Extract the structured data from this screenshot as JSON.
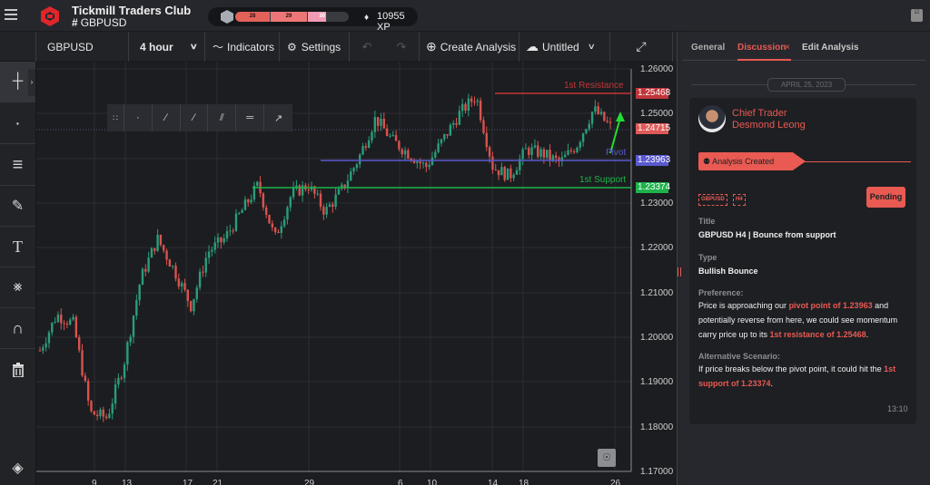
{
  "header": {
    "brand_title": "Tickmill Traders Club",
    "channel_hash": "#",
    "channel_name": "GBPUSD",
    "xp_levels": [
      "28",
      "29",
      "30"
    ],
    "xp_value": "10955 XP",
    "diamond_glyph": "♦",
    "filter_glyph": "☑"
  },
  "toolbar": {
    "symbol": "GBPUSD",
    "interval": "4 hour",
    "interval_chevron": "∨",
    "indicators_icon": "〜",
    "indicators": "Indicators",
    "settings_icon": "⚙",
    "settings": "Settings",
    "undo_icon": "↶",
    "redo_icon": "↷",
    "create_icon": "⊕",
    "create_analysis": "Create Analysis",
    "cloud_icon": "☁",
    "untitled": "Untitled",
    "untitled_chevron": "∨",
    "fullscreen_icon": "⤢"
  },
  "left_tools": [
    {
      "name": "crosshair",
      "glyph": "┼",
      "expand": "›"
    },
    {
      "name": "dot",
      "glyph": "·"
    },
    {
      "name": "trend-lines",
      "glyph": "≡"
    },
    {
      "name": "brush",
      "glyph": "✎"
    },
    {
      "name": "text",
      "glyph": "T"
    },
    {
      "name": "patterns",
      "glyph": "⨳"
    },
    {
      "name": "magnet",
      "glyph": "∩"
    },
    {
      "name": "trash",
      "glyph": "⌘"
    },
    {
      "name": "layers",
      "glyph": "◈"
    }
  ],
  "float_toolbar": {
    "grip": "∷",
    "buttons": [
      "·",
      "∕",
      "∕",
      "⫽",
      "═",
      "↗"
    ]
  },
  "chart_overlay": {
    "resistance_label": "1st Resistance",
    "pivot_label": "Pivot",
    "support_label": "1st Support",
    "resistance_price": "1.25468",
    "current_price": "1.24715",
    "pivot_price": "1.23963",
    "support_price": "1.23374",
    "resistance_color": "#c0363a",
    "pivot_color": "#5a5acf",
    "support_color": "#1db34a",
    "current_color": "#e05a5a",
    "bulb_glyph": "☉"
  },
  "chart_data": {
    "type": "candlestick",
    "title": "GBPUSD 4 hour",
    "y_ticks": [
      "1.26000",
      "1.25000",
      "1.24000",
      "1.23000",
      "1.22000",
      "1.21000",
      "1.20000",
      "1.19000",
      "1.18000",
      "1.17000"
    ],
    "x_ticks": [
      "9",
      "13",
      "17",
      "21",
      "29",
      "6",
      "10",
      "14",
      "18",
      "26"
    ],
    "ylim": [
      1.17,
      1.262
    ],
    "levels": [
      {
        "name": "1st Resistance",
        "value": 1.25468
      },
      {
        "name": "Pivot",
        "value": 1.23963
      },
      {
        "name": "1st Support",
        "value": 1.23374
      }
    ],
    "last_price": 1.24715,
    "approx_path": [
      1.197,
      1.205,
      1.203,
      1.183,
      1.182,
      1.194,
      1.213,
      1.222,
      1.215,
      1.207,
      1.219,
      1.222,
      1.228,
      1.234,
      1.222,
      1.232,
      1.234,
      1.228,
      1.233,
      1.24,
      1.249,
      1.244,
      1.241,
      1.238,
      1.244,
      1.25,
      1.254,
      1.238,
      1.236,
      1.242,
      1.241,
      1.239,
      1.243,
      1.251,
      1.247
    ]
  },
  "right_panel": {
    "tabs": [
      "General",
      "Discussion",
      "Edit Analysis"
    ],
    "active_tab_close": "×",
    "date": "APRIL 25, 2023",
    "author_role": "Chief Trader",
    "author_name": "Desmond Leong",
    "status_icon": "⚉",
    "status": "Analysis Created",
    "tags": [
      "GBPUSD",
      "H4"
    ],
    "pending": "Pending",
    "title_label": "Title",
    "title_value": "GBPUSD H4 | Bounce from support",
    "type_label": "Type",
    "type_value": "Bullish Bounce",
    "preference_label": "Preference:",
    "preference_parts": [
      "Price is approaching our ",
      "pivot point of 1.23963",
      " and potentially reverse from here, we could see momentum carry price up to its ",
      "1st resistance of 1.25468",
      "."
    ],
    "alt_label": "Alternative Scenario:",
    "alt_parts": [
      "If price breaks below the pivot point, it could hit the ",
      "1st support of 1.23374",
      "."
    ],
    "time": "13:10"
  }
}
